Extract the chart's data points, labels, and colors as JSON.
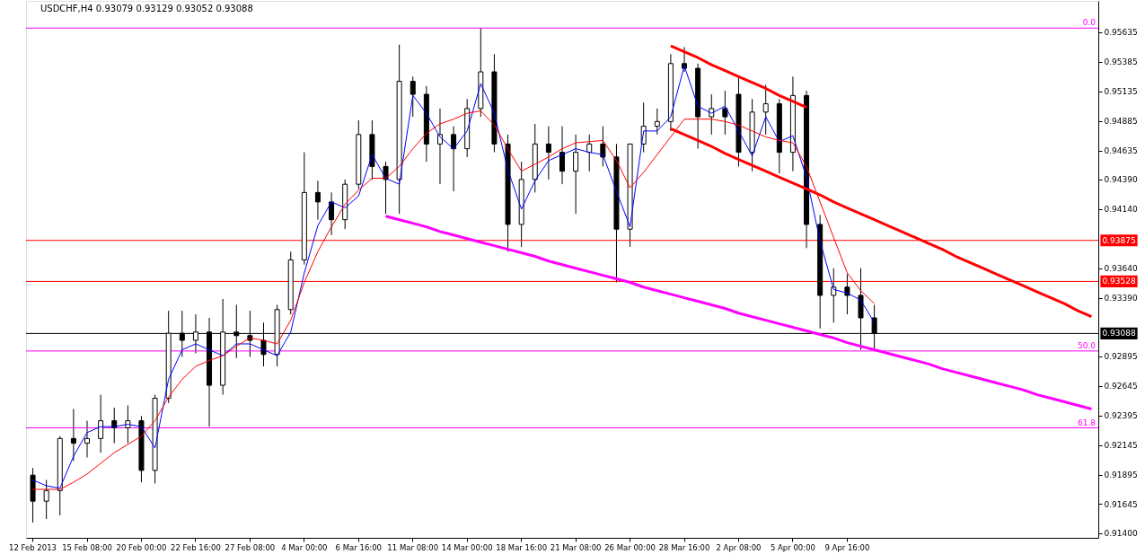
{
  "chart_data": {
    "type": "candlestick",
    "title": "USDCHF,H4  0.93079 0.93129 0.93052 0.93088",
    "categories": [
      "12 Feb 2013",
      null,
      null,
      null,
      "15 Feb 08:00",
      null,
      null,
      null,
      "20 Feb 00:00",
      null,
      null,
      null,
      "22 Feb 16:00",
      null,
      null,
      null,
      "27 Feb 08:00",
      null,
      null,
      null,
      "4 Mar 00:00",
      null,
      null,
      null,
      "6 Mar 16:00",
      null,
      null,
      null,
      "11 Mar 08:00",
      null,
      null,
      null,
      "14 Mar 00:00",
      null,
      null,
      null,
      "18 Mar 16:00",
      null,
      null,
      null,
      "21 Mar 08:00",
      null,
      null,
      null,
      "26 Mar 00:00",
      null,
      null,
      null,
      "28 Mar 16:00",
      null,
      null,
      null,
      "2 Apr 08:00",
      null,
      null,
      null,
      "5 Apr 00:00",
      null,
      null,
      null,
      "9 Apr 16:00",
      null,
      null,
      null,
      null,
      null,
      null,
      null,
      null,
      null,
      null,
      null,
      null,
      null,
      null,
      null,
      null,
      null,
      null
    ],
    "ohlc": [
      [
        0.9189,
        0.9195,
        0.9149,
        0.9167
      ],
      [
        0.9167,
        0.9185,
        0.9152,
        0.9176
      ],
      [
        0.9176,
        0.9222,
        0.9155,
        0.922
      ],
      [
        0.922,
        0.9245,
        0.9201,
        0.9216
      ],
      [
        0.9216,
        0.9235,
        0.9204,
        0.922
      ],
      [
        0.922,
        0.9257,
        0.9208,
        0.9235
      ],
      [
        0.9235,
        0.9246,
        0.9216,
        0.9229
      ],
      [
        0.9229,
        0.9248,
        0.9216,
        0.9235
      ],
      [
        0.9235,
        0.9239,
        0.9183,
        0.9193
      ],
      [
        0.9193,
        0.9257,
        0.9182,
        0.9254
      ],
      [
        0.9254,
        0.9328,
        0.925,
        0.9309
      ],
      [
        0.9309,
        0.9328,
        0.9289,
        0.9303
      ],
      [
        0.9303,
        0.9325,
        0.9292,
        0.931
      ],
      [
        0.931,
        0.9322,
        0.923,
        0.9265
      ],
      [
        0.9265,
        0.9338,
        0.9257,
        0.931
      ],
      [
        0.931,
        0.9333,
        0.9288,
        0.9307
      ],
      [
        0.9307,
        0.9328,
        0.9289,
        0.9303
      ],
      [
        0.9303,
        0.9318,
        0.9281,
        0.9291
      ],
      [
        0.9291,
        0.9333,
        0.9281,
        0.9329
      ],
      [
        0.9329,
        0.9378,
        0.9325,
        0.9371
      ],
      [
        0.9371,
        0.9462,
        0.9367,
        0.9428
      ],
      [
        0.9428,
        0.9438,
        0.9405,
        0.942
      ],
      [
        0.942,
        0.9428,
        0.9392,
        0.9405
      ],
      [
        0.9405,
        0.9439,
        0.9397,
        0.9435
      ],
      [
        0.9435,
        0.9489,
        0.9431,
        0.9477
      ],
      [
        0.9477,
        0.9489,
        0.9439,
        0.945
      ],
      [
        0.945,
        0.9454,
        0.941,
        0.9439
      ],
      [
        0.9439,
        0.9553,
        0.941,
        0.9522
      ],
      [
        0.9522,
        0.9526,
        0.9492,
        0.9511
      ],
      [
        0.9511,
        0.9518,
        0.9454,
        0.9469
      ],
      [
        0.9469,
        0.9499,
        0.9435,
        0.9477
      ],
      [
        0.9477,
        0.9484,
        0.9429,
        0.9465
      ],
      [
        0.9465,
        0.9507,
        0.9458,
        0.9499
      ],
      [
        0.9499,
        0.9567,
        0.9492,
        0.953
      ],
      [
        0.953,
        0.9545,
        0.9462,
        0.9469
      ],
      [
        0.9469,
        0.9477,
        0.9378,
        0.9401
      ],
      [
        0.9401,
        0.9454,
        0.9382,
        0.9439
      ],
      [
        0.9439,
        0.9486,
        0.9428,
        0.9469
      ],
      [
        0.9469,
        0.9484,
        0.9439,
        0.9462
      ],
      [
        0.9462,
        0.9484,
        0.9435,
        0.9446
      ],
      [
        0.9446,
        0.9477,
        0.941,
        0.9462
      ],
      [
        0.9462,
        0.9477,
        0.9446,
        0.9469
      ],
      [
        0.9469,
        0.9484,
        0.945,
        0.9458
      ],
      [
        0.9458,
        0.9469,
        0.9352,
        0.9397
      ],
      [
        0.9397,
        0.9469,
        0.9382,
        0.9469
      ],
      [
        0.9469,
        0.9504,
        0.9462,
        0.9484
      ],
      [
        0.9484,
        0.9499,
        0.9477,
        0.9488
      ],
      [
        0.9488,
        0.9545,
        0.948,
        0.9537
      ],
      [
        0.9537,
        0.9551,
        0.953,
        0.9533
      ],
      [
        0.9533,
        0.9537,
        0.9465,
        0.9492
      ],
      [
        0.9492,
        0.9511,
        0.9477,
        0.9499
      ],
      [
        0.9499,
        0.9514,
        0.9477,
        0.9492
      ],
      [
        0.9511,
        0.9527,
        0.945,
        0.9462
      ],
      [
        0.9462,
        0.9507,
        0.9446,
        0.9496
      ],
      [
        0.9496,
        0.9519,
        0.9477,
        0.9503
      ],
      [
        0.9503,
        0.9507,
        0.9444,
        0.9462
      ],
      [
        0.9462,
        0.9526,
        0.9446,
        0.951
      ],
      [
        0.951,
        0.9514,
        0.9381,
        0.9401
      ],
      [
        0.9401,
        0.9409,
        0.9313,
        0.9341
      ],
      [
        0.9341,
        0.9364,
        0.9318,
        0.9348
      ],
      [
        0.9348,
        0.9359,
        0.9325,
        0.9341
      ],
      [
        0.9341,
        0.9364,
        0.9295,
        0.9322
      ],
      [
        0.9322,
        0.9333,
        0.9295,
        0.9309
      ],
      null,
      null,
      null,
      null,
      null,
      null,
      null,
      null,
      null,
      null,
      null,
      null,
      null,
      null,
      null,
      null
    ],
    "series": [
      {
        "type": "line",
        "color": "#0000ff",
        "values": [
          0.9185,
          0.918,
          0.9178,
          0.9205,
          0.9225,
          0.923,
          0.923,
          0.9232,
          0.923,
          0.9212,
          0.927,
          0.9295,
          0.93,
          0.9295,
          0.929,
          0.93,
          0.93,
          0.9295,
          0.929,
          0.931,
          0.936,
          0.94,
          0.942,
          0.9415,
          0.9425,
          0.946,
          0.944,
          0.9435,
          0.951,
          0.9495,
          0.9475,
          0.9465,
          0.948,
          0.952,
          0.9495,
          0.9447,
          0.9414,
          0.9438,
          0.9455,
          0.946,
          0.9465,
          0.9462,
          0.946,
          0.9429,
          0.9399,
          0.948,
          0.948,
          0.9492,
          0.9535,
          0.9501,
          0.9495,
          0.9501,
          0.948,
          0.9459,
          0.9492,
          0.9471,
          0.9476,
          0.9441,
          0.9387,
          0.9346,
          0.9343,
          0.9337,
          0.9318,
          null,
          null,
          null,
          null,
          null,
          null,
          null,
          null,
          null,
          null,
          null,
          null,
          null,
          null,
          null,
          null
        ]
      },
      {
        "type": "line",
        "color": "#ff0000",
        "values": [
          0.9177,
          0.9177,
          0.9177,
          0.9183,
          0.919,
          0.9199,
          0.9208,
          0.9215,
          0.9222,
          0.9235,
          0.9255,
          0.927,
          0.9281,
          0.9286,
          0.929,
          0.9298,
          0.9305,
          0.9303,
          0.93,
          0.932,
          0.9352,
          0.9378,
          0.9399,
          0.9418,
          0.943,
          0.944,
          0.944,
          0.945,
          0.9465,
          0.9478,
          0.9486,
          0.949,
          0.9495,
          0.9497,
          0.9485,
          0.9465,
          0.9446,
          0.9452,
          0.9458,
          0.9465,
          0.947,
          0.9471,
          0.9472,
          0.9455,
          0.9432,
          0.9445,
          0.946,
          0.9475,
          0.949,
          0.949,
          0.949,
          0.9488,
          0.9485,
          0.948,
          0.9475,
          0.9472,
          0.947,
          0.945,
          0.942,
          0.939,
          0.936,
          0.9345,
          0.9334,
          null,
          null,
          null,
          null,
          null,
          null,
          null,
          null,
          null,
          null,
          null,
          null,
          null,
          null,
          null,
          null
        ]
      },
      {
        "type": "line",
        "color": "#ff00ff",
        "values": [
          null,
          null,
          null,
          null,
          null,
          null,
          null,
          null,
          null,
          null,
          null,
          null,
          null,
          null,
          null,
          null,
          null,
          null,
          null,
          null,
          null,
          null,
          null,
          null,
          null,
          null,
          0.9408,
          0.9405,
          0.9402,
          0.9399,
          0.9395,
          0.9392,
          0.9389,
          0.9386,
          0.9383,
          0.938,
          0.9377,
          0.9374,
          0.937,
          0.9367,
          0.9364,
          0.9361,
          0.9358,
          0.9355,
          0.9352,
          0.9348,
          0.9345,
          0.9342,
          0.9339,
          0.9336,
          0.9333,
          0.933,
          0.9326,
          0.9323,
          0.932,
          0.9317,
          0.9314,
          0.9311,
          0.9308,
          0.9305,
          0.9301,
          0.9298,
          0.9295,
          0.9292,
          0.9289,
          0.9286,
          0.9283,
          0.9279,
          0.9276,
          0.9273,
          0.927,
          0.9267,
          0.9264,
          0.9261,
          0.9257,
          0.9254,
          0.9251,
          0.9248,
          0.9245
        ]
      },
      {
        "type": "line",
        "color": "#ff0000",
        "values": [
          null,
          null,
          null,
          null,
          null,
          null,
          null,
          null,
          null,
          null,
          null,
          null,
          null,
          null,
          null,
          null,
          null,
          null,
          null,
          null,
          null,
          null,
          null,
          null,
          null,
          null,
          null,
          null,
          null,
          null,
          null,
          null,
          null,
          null,
          null,
          null,
          null,
          null,
          null,
          null,
          null,
          null,
          null,
          null,
          null,
          null,
          null,
          0.9552,
          0.9547,
          0.9542,
          0.9536,
          0.9531,
          0.9526,
          0.9521,
          0.9516,
          0.951,
          0.9505,
          0.95,
          null,
          null,
          null,
          null,
          null,
          null,
          null,
          null,
          null,
          null,
          null,
          null,
          null,
          null,
          null,
          null,
          null,
          null,
          null,
          null,
          null
        ]
      },
      {
        "type": "line",
        "color": "#ff0000",
        "values": [
          null,
          null,
          null,
          null,
          null,
          null,
          null,
          null,
          null,
          null,
          null,
          null,
          null,
          null,
          null,
          null,
          null,
          null,
          null,
          null,
          null,
          null,
          null,
          null,
          null,
          null,
          null,
          null,
          null,
          null,
          null,
          null,
          null,
          null,
          null,
          null,
          null,
          null,
          null,
          null,
          null,
          null,
          null,
          null,
          null,
          null,
          null,
          0.9482,
          0.9477,
          0.9472,
          0.9467,
          0.9461,
          0.9456,
          0.9451,
          0.9446,
          0.9441,
          0.9436,
          0.9431,
          0.9426,
          0.942,
          0.9415,
          0.941,
          0.9405,
          0.94,
          0.9395,
          0.939,
          0.9385,
          0.938,
          0.9374,
          0.9369,
          0.9364,
          0.9359,
          0.9354,
          0.9349,
          0.9344,
          0.9339,
          0.9334,
          0.9328,
          0.9323
        ]
      }
    ],
    "ref_lines": [
      {
        "axis": "y",
        "value": 0.9567,
        "color": "#ff00ff"
      },
      {
        "axis": "y",
        "value": 0.9294,
        "color": "#ff00ff"
      },
      {
        "axis": "y",
        "value": 0.9229,
        "color": "#ff00ff"
      },
      {
        "axis": "y",
        "value": 0.93875,
        "label": "0.93875",
        "color": "#ff0000"
      },
      {
        "axis": "y",
        "value": 0.93528,
        "label": "0.93528",
        "color": "#ff0000"
      },
      {
        "axis": "y",
        "value": 0.93088,
        "label": "0.93088",
        "color": "#000000"
      }
    ],
    "annotations": [
      {
        "text": "0.0",
        "y": 0.9567
      },
      {
        "text": "50.0",
        "y": 0.9294
      },
      {
        "text": "61.8",
        "y": 0.9229
      }
    ],
    "ylim": [
      0.9136,
      0.959
    ],
    "yticks": [
      0.95635,
      0.95385,
      0.95135,
      0.94885,
      0.94635,
      {
        "value": 0.9439,
        "label": "0.94390"
      },
      {
        "value": 0.9414,
        "label": "0.94140"
      },
      {
        "value": 0.9364,
        "label": "0.93640"
      },
      {
        "value": 0.9339,
        "label": "0.93390"
      },
      0.92895,
      0.92645,
      0.92395,
      0.92145,
      0.91895,
      0.91645,
      {
        "value": 0.914,
        "label": "0.91400"
      }
    ],
    "grid": false
  }
}
